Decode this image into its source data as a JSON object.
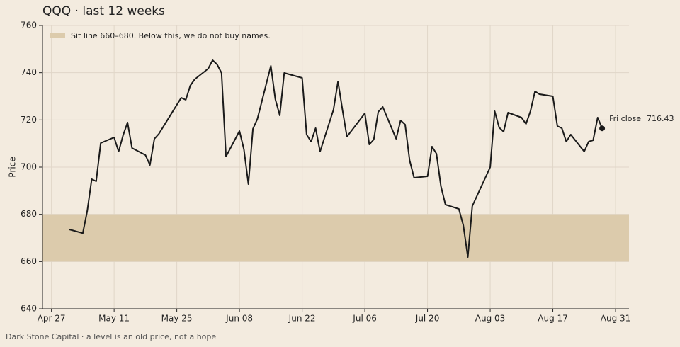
{
  "chart_data": {
    "type": "line",
    "title": "QQQ  ·  last 12 weeks",
    "y_label": "Price",
    "footer": "Dark Stone Capital  ·  a level is an old price, not a hope",
    "x": [
      "May 1",
      "May 4",
      "May 5",
      "May 6",
      "May 7",
      "May 8",
      "May 11",
      "May 12",
      "May 13",
      "May 14",
      "May 15",
      "May 18",
      "May 19",
      "May 20",
      "May 21",
      "May 26",
      "May 27",
      "May 28",
      "May 29",
      "Jun 1",
      "Jun 2",
      "Jun 3",
      "Jun 4",
      "Jun 5",
      "Jun 8",
      "Jun 9",
      "Jun 10",
      "Jun 11",
      "Jun 12",
      "Jun 15",
      "Jun 16",
      "Jun 17",
      "Jun 18",
      "Jun 22",
      "Jun 23",
      "Jun 24",
      "Jun 25",
      "Jun 26",
      "Jun 29",
      "Jun 30",
      "Jul 1",
      "Jul 2",
      "Jul 6",
      "Jul 7",
      "Jul 8",
      "Jul 9",
      "Jul 10",
      "Jul 13",
      "Jul 14",
      "Jul 15",
      "Jul 16",
      "Jul 17",
      "Jul 20",
      "Jul 21",
      "Jul 22",
      "Jul 23",
      "Jul 24",
      "Jul 27",
      "Jul 28",
      "Jul 29",
      "Jul 30",
      "Aug 3",
      "Aug 4",
      "Aug 5",
      "Aug 6",
      "Aug 7",
      "Aug 10",
      "Aug 11",
      "Aug 12",
      "Aug 13",
      "Aug 14",
      "Aug 17",
      "Aug 18",
      "Aug 19",
      "Aug 20",
      "Aug 21",
      "Aug 24",
      "Aug 25",
      "Aug 26",
      "Aug 27",
      "Aug 28"
    ],
    "values": [
      673.6,
      672,
      681.4,
      694.9,
      694,
      710.2,
      712.6,
      706.6,
      713.5,
      718.9,
      708.1,
      705.1,
      700.9,
      712,
      714.1,
      729.4,
      728.5,
      734.5,
      737.2,
      741.7,
      745.3,
      743.5,
      739.9,
      704.5,
      715.3,
      707.5,
      692.8,
      716.2,
      720.4,
      742.9,
      728.8,
      721.9,
      739.9,
      737.8,
      713.8,
      710.8,
      716.5,
      706.6,
      724.3,
      736.3,
      724.3,
      712.9,
      722.8,
      709.6,
      711.7,
      723.4,
      725.5,
      712,
      719.8,
      718,
      702.9,
      695.5,
      696.1,
      708.7,
      705.7,
      691.9,
      684.1,
      682.3,
      675.4,
      661.9,
      683.5,
      700,
      723.7,
      716.8,
      715,
      723.1,
      721,
      718.3,
      723.7,
      732.1,
      730.9,
      730,
      717.4,
      716.5,
      710.8,
      713.8,
      706.6,
      710.8,
      711.4,
      721,
      716.43
    ],
    "color": "#1a1a1a",
    "last_label": "Fri close",
    "band": {
      "from": 660,
      "to": 680,
      "color": "#dccbac",
      "label": "Sit line  660–680. Below this, we do not buy names."
    },
    "xlim": [
      "Apr 25",
      "Sep 3"
    ],
    "xticks": [
      "Apr 27",
      "May 11",
      "May 25",
      "Jun 08",
      "Jun 22",
      "Jul 06",
      "Jul 20",
      "Aug 03",
      "Aug 17",
      "Aug 31"
    ],
    "ylim": [
      640,
      760
    ],
    "yticks": [
      640,
      660,
      680,
      700,
      720,
      740,
      760
    ],
    "grid": true
  }
}
